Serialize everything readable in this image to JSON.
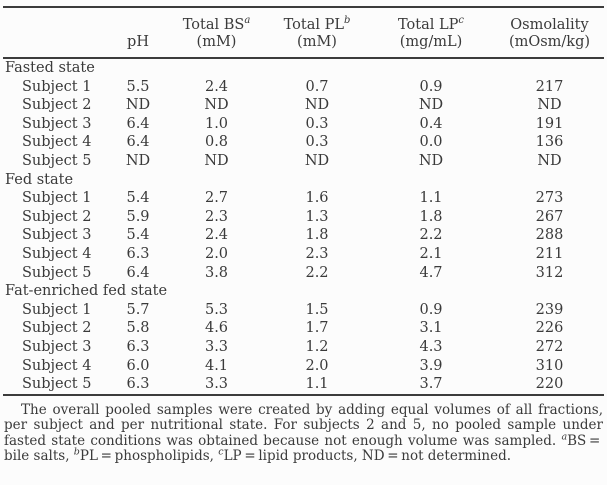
{
  "table": {
    "columns": [
      {
        "label": "",
        "unit": ""
      },
      {
        "label": "pH",
        "unit": ""
      },
      {
        "label": "Total BS",
        "sup": "a",
        "unit": "(mM)"
      },
      {
        "label": "Total PL",
        "sup": "b",
        "unit": "(mM)"
      },
      {
        "label": "Total LP",
        "sup": "c",
        "unit": "(mg/mL)"
      },
      {
        "label": "Osmolality",
        "unit": "(mOsm/kg)"
      }
    ],
    "groups": [
      {
        "label": "Fasted state",
        "rows": [
          {
            "label": "Subject 1",
            "values": [
              "5.5",
              "2.4",
              "0.7",
              "0.9",
              "217"
            ]
          },
          {
            "label": "Subject 2",
            "values": [
              "ND",
              "ND",
              "ND",
              "ND",
              "ND"
            ]
          },
          {
            "label": "Subject 3",
            "values": [
              "6.4",
              "1.0",
              "0.3",
              "0.4",
              "191"
            ]
          },
          {
            "label": "Subject 4",
            "values": [
              "6.4",
              "0.8",
              "0.3",
              "0.0",
              "136"
            ]
          },
          {
            "label": "Subject 5",
            "values": [
              "ND",
              "ND",
              "ND",
              "ND",
              "ND"
            ]
          }
        ]
      },
      {
        "label": "Fed state",
        "rows": [
          {
            "label": "Subject 1",
            "values": [
              "5.4",
              "2.7",
              "1.6",
              "1.1",
              "273"
            ]
          },
          {
            "label": "Subject 2",
            "values": [
              "5.9",
              "2.3",
              "1.3",
              "1.8",
              "267"
            ]
          },
          {
            "label": "Subject 3",
            "values": [
              "5.4",
              "2.4",
              "1.8",
              "2.2",
              "288"
            ]
          },
          {
            "label": "Subject 4",
            "values": [
              "6.3",
              "2.0",
              "2.3",
              "2.1",
              "211"
            ]
          },
          {
            "label": "Subject 5",
            "values": [
              "6.4",
              "3.8",
              "2.2",
              "4.7",
              "312"
            ]
          }
        ]
      },
      {
        "label": "Fat-enriched fed state",
        "rows": [
          {
            "label": "Subject 1",
            "values": [
              "5.7",
              "5.3",
              "1.5",
              "0.9",
              "239"
            ]
          },
          {
            "label": "Subject 2",
            "values": [
              "5.8",
              "4.6",
              "1.7",
              "3.1",
              "226"
            ]
          },
          {
            "label": "Subject 3",
            "values": [
              "6.3",
              "3.3",
              "1.2",
              "4.3",
              "272"
            ]
          },
          {
            "label": "Subject 4",
            "values": [
              "6.0",
              "4.1",
              "2.0",
              "3.9",
              "310"
            ]
          },
          {
            "label": "Subject 5",
            "values": [
              "6.3",
              "3.3",
              "1.1",
              "3.7",
              "220"
            ]
          }
        ]
      }
    ]
  },
  "footnote": {
    "part1": "The overall pooled samples were created by adding equal volumes of all fractions, per subject and per nutritional state. For subjects 2 and 5, no pooled sample under fasted state conditions was obtained because not enough volume was sampled. ",
    "sup_a": "a",
    "seg_bs": "BS = bile salts, ",
    "sup_b": "b",
    "seg_pl": "PL = phospholipids, ",
    "sup_c": "c",
    "seg_lp": "LP = lipid products, ND = not determined."
  }
}
